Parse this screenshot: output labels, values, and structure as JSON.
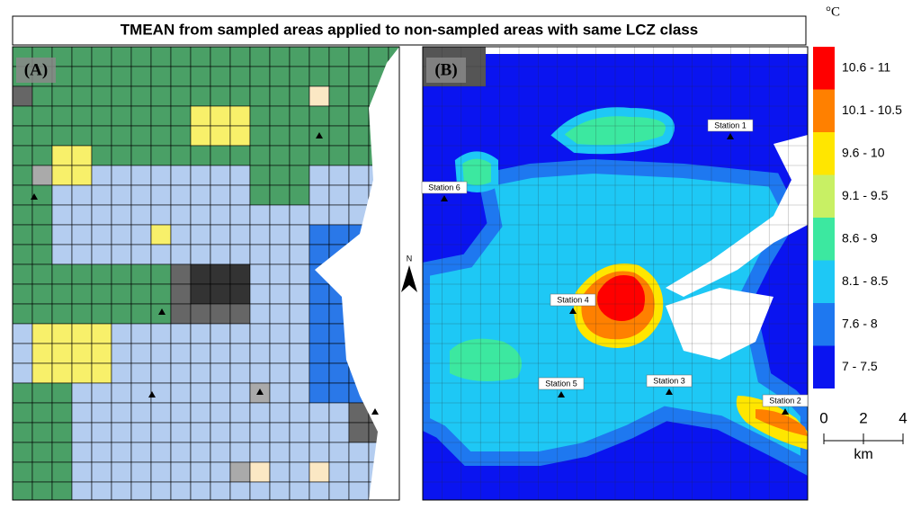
{
  "title": "TMEAN from sampled areas applied to non-sampled areas with same LCZ class",
  "panels": [
    {
      "label": "(A)"
    },
    {
      "label": "(B)"
    }
  ],
  "stations": [
    "Station 1",
    "Station 2",
    "Station 3",
    "Station 4",
    "Station 5",
    "Station 6"
  ],
  "legend": {
    "title": "°C",
    "items": [
      {
        "label": "10.6 - 11",
        "color": "#ff0000"
      },
      {
        "label": "10.1 - 10.5",
        "color": "#ff8000"
      },
      {
        "label": "9.6 - 10",
        "color": "#ffe600"
      },
      {
        "label": "9.1 - 9.5",
        "color": "#c8f064"
      },
      {
        "label": "8.6 - 9",
        "color": "#3ce8a0"
      },
      {
        "label": "8.1 - 8.5",
        "color": "#1ec8f5"
      },
      {
        "label": "7.6 - 8",
        "color": "#1e78f0"
      },
      {
        "label": "7 - 7.5",
        "color": "#0a14f0"
      }
    ]
  },
  "scale_bar": {
    "ticks": [
      0,
      2,
      4
    ],
    "unit": "km"
  },
  "north": "N"
}
